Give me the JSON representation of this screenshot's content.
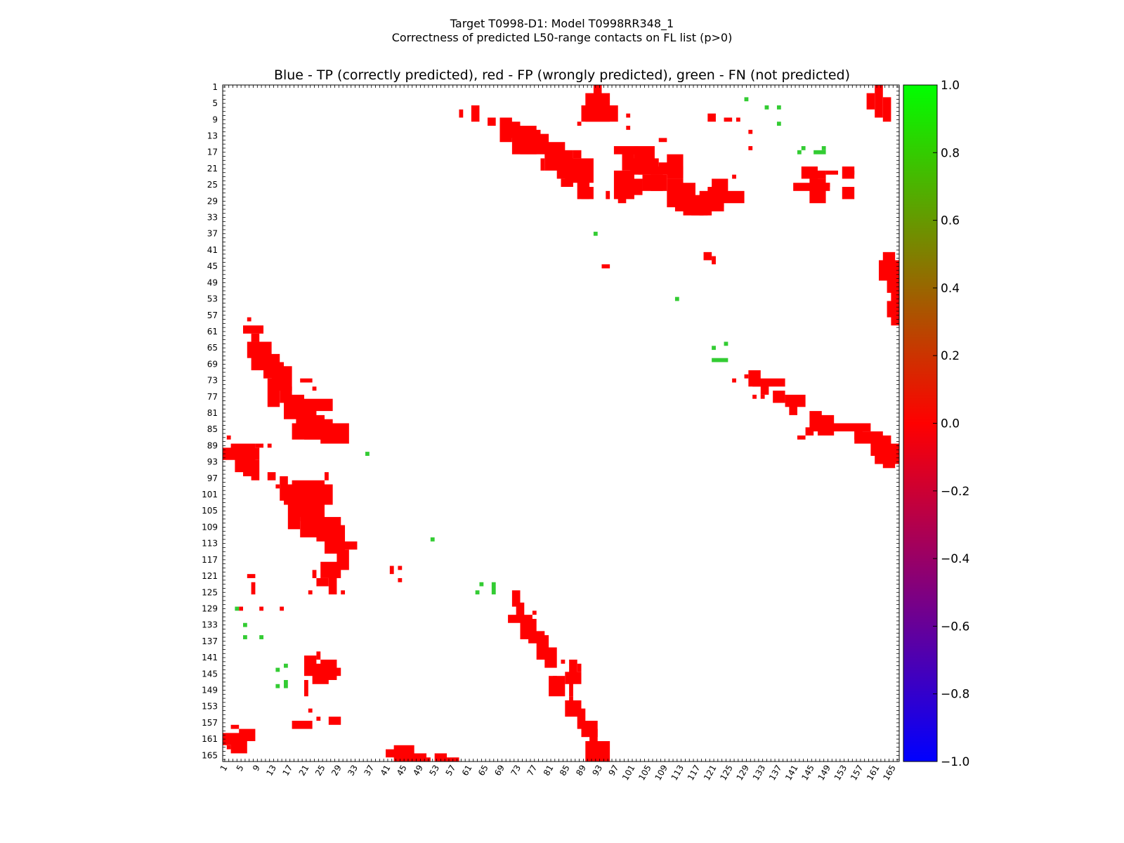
{
  "figure": {
    "suptitle_line1": "Target T0998-D1: Model T0998RR348_1",
    "suptitle_line2": "Correctness of predicted L50-range contacts on FL list (p>0)"
  },
  "chart_data": {
    "type": "heatmap",
    "title": "Blue - TP (correctly predicted), red - FP (wrongly predicted), green - FN (not predicted)",
    "xlabel": "",
    "ylabel": "",
    "residue_range": [
      1,
      166
    ],
    "x_ticks": [
      1,
      5,
      9,
      13,
      17,
      21,
      25,
      29,
      33,
      37,
      41,
      45,
      49,
      53,
      57,
      61,
      65,
      69,
      73,
      77,
      81,
      85,
      89,
      93,
      97,
      101,
      105,
      109,
      113,
      117,
      121,
      125,
      129,
      133,
      137,
      141,
      145,
      149,
      153,
      157,
      161,
      165
    ],
    "y_ticks": [
      1,
      5,
      9,
      13,
      17,
      21,
      25,
      29,
      33,
      37,
      41,
      45,
      49,
      53,
      57,
      61,
      65,
      69,
      73,
      77,
      81,
      85,
      89,
      93,
      97,
      101,
      105,
      109,
      113,
      117,
      121,
      125,
      129,
      133,
      137,
      141,
      145,
      149,
      153,
      157,
      161,
      165
    ],
    "colorbar": {
      "range": [
        -1.0,
        1.0
      ],
      "tick_labels": [
        "1.0",
        "0.8",
        "0.6",
        "0.4",
        "0.2",
        "0.0",
        "−0.2",
        "−0.4",
        "−0.6",
        "−0.8",
        "−1.0"
      ],
      "tick_values": [
        1.0,
        0.8,
        0.6,
        0.4,
        0.2,
        0.0,
        -0.2,
        -0.4,
        -0.6,
        -0.8,
        -1.0
      ],
      "colors": [
        "#0000ff",
        "#ff0000",
        "#00ff00"
      ]
    },
    "fp_color": "#ff0000",
    "fn_color": "#33cc33",
    "fp_rects": [
      [
        92,
        1,
        93,
        3
      ],
      [
        90,
        3,
        95,
        9
      ],
      [
        89,
        6,
        97,
        9
      ],
      [
        88,
        10,
        88,
        10
      ],
      [
        100,
        8,
        100,
        8
      ],
      [
        120,
        8,
        121,
        9
      ],
      [
        124,
        9,
        125,
        9
      ],
      [
        127,
        9,
        127,
        9
      ],
      [
        130,
        12,
        130,
        12
      ],
      [
        130,
        16,
        130,
        16
      ],
      [
        100,
        11,
        100,
        11
      ],
      [
        108,
        14,
        109,
        14
      ],
      [
        59,
        7,
        59,
        8
      ],
      [
        62,
        6,
        63,
        9
      ],
      [
        66,
        9,
        67,
        10
      ],
      [
        69,
        9,
        71,
        14
      ],
      [
        70,
        10,
        73,
        13
      ],
      [
        72,
        11,
        77,
        17
      ],
      [
        74,
        13,
        80,
        17
      ],
      [
        77,
        12,
        78,
        15
      ],
      [
        80,
        15,
        84,
        21
      ],
      [
        83,
        17,
        86,
        23
      ],
      [
        85,
        19,
        91,
        24
      ],
      [
        88,
        21,
        90,
        28
      ],
      [
        89,
        26,
        91,
        28
      ],
      [
        73,
        16,
        74,
        16
      ],
      [
        79,
        19,
        79,
        21
      ],
      [
        84,
        24,
        86,
        25
      ],
      [
        87,
        17,
        88,
        18
      ],
      [
        97,
        16,
        102,
        17
      ],
      [
        99,
        17,
        101,
        21
      ],
      [
        102,
        16,
        106,
        21
      ],
      [
        101,
        19,
        107,
        22
      ],
      [
        103,
        21,
        113,
        22
      ],
      [
        108,
        20,
        110,
        21
      ],
      [
        110,
        18,
        113,
        23
      ],
      [
        97,
        22,
        101,
        28
      ],
      [
        100,
        24,
        103,
        27
      ],
      [
        104,
        23,
        109,
        26
      ],
      [
        95,
        27,
        95,
        28
      ],
      [
        98,
        26,
        99,
        29
      ],
      [
        106,
        23,
        108,
        26
      ],
      [
        110,
        24,
        113,
        30
      ],
      [
        112,
        25,
        116,
        31
      ],
      [
        114,
        28,
        119,
        32
      ],
      [
        116,
        30,
        118,
        32
      ],
      [
        118,
        28,
        120,
        32
      ],
      [
        120,
        26,
        123,
        31
      ],
      [
        121,
        24,
        124,
        28
      ],
      [
        126,
        23,
        126,
        23
      ],
      [
        118,
        27,
        128,
        29
      ],
      [
        123,
        30,
        123,
        30
      ],
      [
        143,
        21,
        146,
        23
      ],
      [
        145,
        22,
        148,
        23
      ],
      [
        141,
        25,
        149,
        26
      ],
      [
        145,
        24,
        148,
        29
      ],
      [
        149,
        22,
        151,
        22
      ],
      [
        155,
        22,
        155,
        22
      ],
      [
        148,
        25,
        149,
        25
      ],
      [
        153,
        21,
        155,
        23
      ],
      [
        153,
        26,
        155,
        28
      ],
      [
        161,
        1,
        162,
        8
      ],
      [
        163,
        4,
        164,
        9
      ],
      [
        159,
        3,
        160,
        6
      ],
      [
        119,
        42,
        120,
        43
      ],
      [
        121,
        43,
        121,
        44
      ],
      [
        94,
        45,
        95,
        45
      ],
      [
        163,
        42,
        165,
        45
      ],
      [
        162,
        44,
        166,
        48
      ],
      [
        164,
        47,
        166,
        51
      ],
      [
        165,
        51,
        166,
        54
      ],
      [
        164,
        54,
        166,
        57
      ],
      [
        165,
        57,
        166,
        59
      ],
      [
        129,
        72,
        129,
        72
      ],
      [
        130,
        71,
        132,
        74
      ],
      [
        131,
        73,
        138,
        74
      ],
      [
        133,
        74,
        134,
        76
      ],
      [
        136,
        76,
        138,
        78
      ],
      [
        139,
        77,
        143,
        79
      ],
      [
        140,
        79,
        141,
        81
      ],
      [
        145,
        81,
        147,
        85
      ],
      [
        147,
        82,
        150,
        86
      ],
      [
        147,
        84,
        159,
        85
      ],
      [
        156,
        85,
        157,
        87
      ],
      [
        156,
        86,
        162,
        88
      ],
      [
        160,
        87,
        164,
        91
      ],
      [
        161,
        89,
        166,
        93
      ],
      [
        163,
        91,
        165,
        94
      ],
      [
        142,
        87,
        143,
        87
      ],
      [
        146,
        82,
        146,
        82
      ],
      [
        144,
        85,
        145,
        86
      ],
      [
        147,
        84,
        148,
        84
      ],
      [
        133,
        77,
        133,
        77
      ],
      [
        131,
        77,
        131,
        77
      ],
      [
        126,
        73,
        126,
        73
      ],
      [
        7,
        58,
        7,
        58
      ],
      [
        6,
        60,
        10,
        61
      ],
      [
        8,
        62,
        9,
        63
      ],
      [
        7,
        64,
        12,
        67
      ],
      [
        8,
        67,
        14,
        70
      ],
      [
        11,
        69,
        15,
        72
      ],
      [
        13,
        70,
        17,
        75
      ],
      [
        12,
        73,
        14,
        79
      ],
      [
        15,
        75,
        17,
        78
      ],
      [
        16,
        77,
        20,
        82
      ],
      [
        17,
        78,
        27,
        80
      ],
      [
        19,
        80,
        23,
        86
      ],
      [
        21,
        82,
        25,
        87
      ],
      [
        24,
        83,
        27,
        86
      ],
      [
        18,
        84,
        29,
        87
      ],
      [
        25,
        84,
        31,
        88
      ],
      [
        20,
        73,
        22,
        73
      ],
      [
        23,
        75,
        23,
        75
      ],
      [
        3,
        89,
        4,
        91
      ],
      [
        1,
        90,
        9,
        92
      ],
      [
        4,
        89,
        8,
        95
      ],
      [
        6,
        92,
        8,
        96
      ],
      [
        8,
        93,
        9,
        97
      ],
      [
        2,
        87,
        2,
        87
      ],
      [
        9,
        89,
        10,
        89
      ],
      [
        12,
        89,
        12,
        89
      ],
      [
        15,
        97,
        16,
        102
      ],
      [
        16,
        99,
        27,
        103
      ],
      [
        18,
        98,
        25,
        106
      ],
      [
        20,
        101,
        24,
        107
      ],
      [
        17,
        102,
        19,
        109
      ],
      [
        20,
        106,
        25,
        111
      ],
      [
        22,
        105,
        24,
        110
      ],
      [
        24,
        107,
        29,
        112
      ],
      [
        26,
        109,
        30,
        115
      ],
      [
        28,
        113,
        33,
        114
      ],
      [
        29,
        115,
        31,
        119
      ],
      [
        25,
        118,
        29,
        121
      ],
      [
        27,
        121,
        28,
        125
      ],
      [
        24,
        122,
        26,
        123
      ],
      [
        23,
        120,
        23,
        121
      ],
      [
        22,
        125,
        22,
        125
      ],
      [
        30,
        125,
        30,
        125
      ],
      [
        26,
        96,
        26,
        97
      ],
      [
        12,
        96,
        13,
        97
      ],
      [
        14,
        99,
        14,
        99
      ],
      [
        7,
        121,
        8,
        121
      ],
      [
        8,
        123,
        8,
        125
      ],
      [
        5,
        129,
        5,
        129
      ],
      [
        10,
        129,
        10,
        129
      ],
      [
        15,
        129,
        15,
        129
      ],
      [
        42,
        119,
        42,
        120
      ],
      [
        44,
        119,
        44,
        119
      ],
      [
        44,
        122,
        44,
        122
      ],
      [
        72,
        125,
        73,
        128
      ],
      [
        73,
        128,
        74,
        131
      ],
      [
        71,
        131,
        76,
        132
      ],
      [
        74,
        132,
        77,
        136
      ],
      [
        76,
        135,
        79,
        137
      ],
      [
        78,
        136,
        80,
        141
      ],
      [
        80,
        139,
        82,
        143
      ],
      [
        84,
        142,
        84,
        142
      ],
      [
        86,
        142,
        87,
        146
      ],
      [
        88,
        143,
        88,
        144
      ],
      [
        85,
        145,
        88,
        147
      ],
      [
        81,
        146,
        84,
        150
      ],
      [
        86,
        147,
        86,
        150
      ],
      [
        86,
        151,
        86,
        151
      ],
      [
        85,
        152,
        88,
        155
      ],
      [
        88,
        154,
        89,
        158
      ],
      [
        89,
        157,
        92,
        160
      ],
      [
        91,
        159,
        92,
        165
      ],
      [
        90,
        162,
        95,
        166
      ],
      [
        93,
        164,
        94,
        166
      ],
      [
        82,
        146,
        82,
        147
      ],
      [
        77,
        130,
        77,
        130
      ],
      [
        21,
        141,
        23,
        145
      ],
      [
        25,
        142,
        28,
        146
      ],
      [
        23,
        143,
        26,
        147
      ],
      [
        21,
        147,
        21,
        150
      ],
      [
        24,
        140,
        24,
        141
      ],
      [
        28,
        144,
        29,
        145
      ],
      [
        18,
        157,
        22,
        158
      ],
      [
        24,
        156,
        24,
        156
      ],
      [
        27,
        156,
        29,
        157
      ],
      [
        22,
        154,
        22,
        154
      ],
      [
        3,
        158,
        4,
        158
      ],
      [
        1,
        160,
        5,
        162
      ],
      [
        3,
        161,
        6,
        164
      ],
      [
        5,
        159,
        8,
        161
      ],
      [
        2,
        163,
        2,
        163
      ],
      [
        41,
        164,
        46,
        165
      ],
      [
        43,
        163,
        47,
        166
      ],
      [
        45,
        165,
        50,
        166
      ],
      [
        51,
        166,
        51,
        166
      ],
      [
        53,
        165,
        55,
        166
      ],
      [
        55,
        166,
        58,
        166
      ]
    ],
    "fn_rects": [
      [
        129,
        4,
        129,
        4
      ],
      [
        134,
        6,
        134,
        6
      ],
      [
        137,
        6,
        137,
        6
      ],
      [
        137,
        10,
        137,
        10
      ],
      [
        143,
        16,
        143,
        16
      ],
      [
        142,
        17,
        142,
        17
      ],
      [
        148,
        16,
        148,
        16
      ],
      [
        146,
        17,
        148,
        17
      ],
      [
        92,
        37,
        92,
        37
      ],
      [
        112,
        53,
        112,
        53
      ],
      [
        121,
        65,
        121,
        65
      ],
      [
        124,
        64,
        124,
        64
      ],
      [
        121,
        68,
        124,
        68
      ],
      [
        36,
        91,
        36,
        91
      ],
      [
        52,
        112,
        52,
        112
      ],
      [
        64,
        123,
        64,
        123
      ],
      [
        67,
        123,
        67,
        125
      ],
      [
        63,
        125,
        63,
        125
      ],
      [
        4,
        129,
        4,
        129
      ],
      [
        6,
        133,
        6,
        133
      ],
      [
        6,
        136,
        6,
        136
      ],
      [
        10,
        136,
        10,
        136
      ],
      [
        16,
        143,
        16,
        143
      ],
      [
        14,
        144,
        14,
        144
      ],
      [
        16,
        147,
        16,
        148
      ],
      [
        14,
        148,
        14,
        148
      ]
    ]
  }
}
